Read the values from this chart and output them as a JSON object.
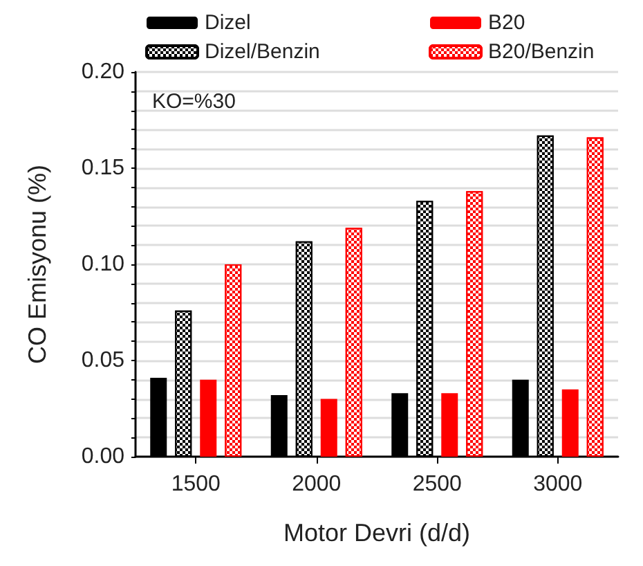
{
  "chart_data": {
    "type": "bar",
    "xlabel": "Motor Devri (d/d)",
    "ylabel": "CO Emisyonu (%)",
    "annotations": [
      "KO=%30"
    ],
    "categories": [
      "1500",
      "2000",
      "2500",
      "3000"
    ],
    "series": [
      {
        "name": "Dizel",
        "color": "#000000",
        "values": [
          0.041,
          0.032,
          0.033,
          0.04
        ]
      },
      {
        "name": "Dizel/Benzin",
        "color": "#000000",
        "values": [
          0.076,
          0.112,
          0.133,
          0.167
        ]
      },
      {
        "name": "B20",
        "color": "#ff0000",
        "values": [
          0.04,
          0.03,
          0.033,
          0.035
        ]
      },
      {
        "name": "B20/Benzin",
        "color": "#ff0000",
        "values": [
          0.1,
          0.119,
          0.138,
          0.166
        ]
      }
    ],
    "ylim": [
      0,
      0.2
    ],
    "yticks": [
      {
        "value": 0,
        "label": "0.00"
      },
      {
        "value": 0.01,
        "label": null
      },
      {
        "value": 0.02,
        "label": null
      },
      {
        "value": 0.03,
        "label": null
      },
      {
        "value": 0.04,
        "label": null
      },
      {
        "value": 0.05,
        "label": "0.05"
      },
      {
        "value": 0.06,
        "label": null
      },
      {
        "value": 0.07,
        "label": null
      },
      {
        "value": 0.08,
        "label": null
      },
      {
        "value": 0.09,
        "label": null
      },
      {
        "value": 0.1,
        "label": "0.10"
      },
      {
        "value": 0.11,
        "label": null
      },
      {
        "value": 0.12,
        "label": null
      },
      {
        "value": 0.13,
        "label": null
      },
      {
        "value": 0.14,
        "label": null
      },
      {
        "value": 0.15,
        "label": "0.15"
      },
      {
        "value": 0.16,
        "label": null
      },
      {
        "value": 0.17,
        "label": null
      },
      {
        "value": 0.18,
        "label": null
      },
      {
        "value": 0.19,
        "label": null
      },
      {
        "value": 0.2,
        "label": "0.20"
      }
    ],
    "grid": "y",
    "legend": "top"
  }
}
